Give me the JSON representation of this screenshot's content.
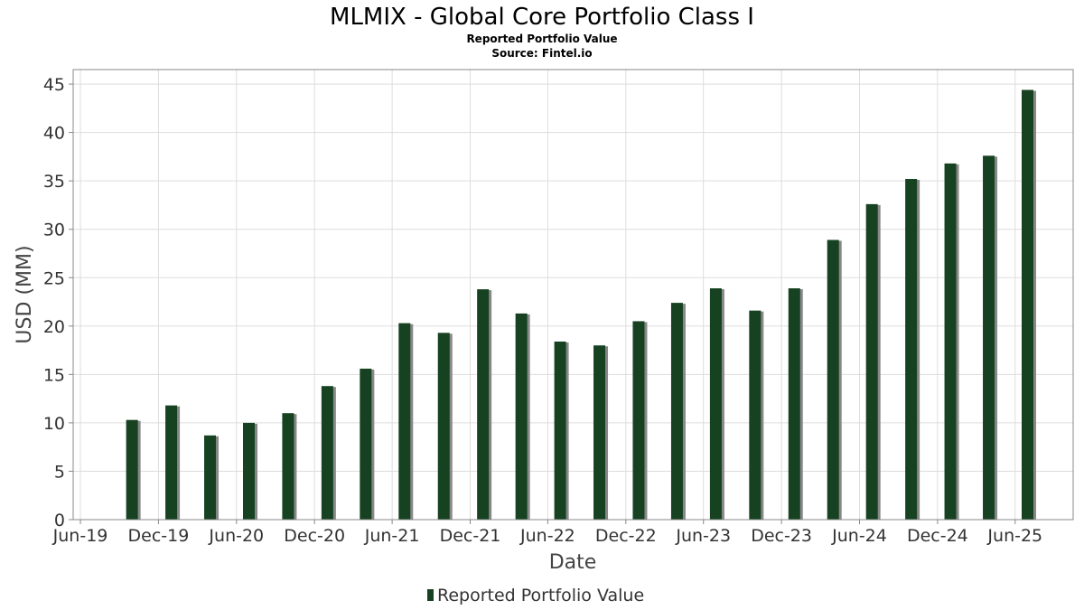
{
  "chart_data": {
    "type": "bar",
    "title": "MLMIX - Global Core Portfolio Class I",
    "subtitle_lines": [
      "Reported Portfolio Value",
      "Source: Fintel.io"
    ],
    "xlabel": "Date",
    "ylabel": "USD (MM)",
    "ylim": [
      0,
      46.5
    ],
    "yticks": [
      "0",
      "5",
      "10",
      "15",
      "20",
      "25",
      "30",
      "35",
      "40",
      "45"
    ],
    "xlim": [
      "2019-05-15",
      "2025-10-15"
    ],
    "xticks": [
      {
        "date": "2019-06-01",
        "label": "Jun-19"
      },
      {
        "date": "2019-12-01",
        "label": "Dec-19"
      },
      {
        "date": "2020-06-01",
        "label": "Jun-20"
      },
      {
        "date": "2020-12-01",
        "label": "Dec-20"
      },
      {
        "date": "2021-06-01",
        "label": "Jun-21"
      },
      {
        "date": "2021-12-01",
        "label": "Dec-21"
      },
      {
        "date": "2022-06-01",
        "label": "Jun-22"
      },
      {
        "date": "2022-12-01",
        "label": "Dec-22"
      },
      {
        "date": "2023-06-01",
        "label": "Jun-23"
      },
      {
        "date": "2023-12-01",
        "label": "Dec-23"
      },
      {
        "date": "2024-06-01",
        "label": "Jun-24"
      },
      {
        "date": "2024-12-01",
        "label": "Dec-24"
      },
      {
        "date": "2025-06-01",
        "label": "Jun-25"
      }
    ],
    "grid": true,
    "legend_position": "bottom-center",
    "series": [
      {
        "name": "Reported Portfolio Value",
        "color": "#164221",
        "shadow_color": "#888888",
        "points": [
          {
            "x": "2019-09-30",
            "y": 10.3
          },
          {
            "x": "2019-12-31",
            "y": 11.8
          },
          {
            "x": "2020-03-31",
            "y": 8.7
          },
          {
            "x": "2020-06-30",
            "y": 10.0
          },
          {
            "x": "2020-09-30",
            "y": 11.0
          },
          {
            "x": "2020-12-31",
            "y": 13.8
          },
          {
            "x": "2021-03-31",
            "y": 15.6
          },
          {
            "x": "2021-06-30",
            "y": 20.3
          },
          {
            "x": "2021-09-30",
            "y": 19.3
          },
          {
            "x": "2021-12-31",
            "y": 23.8
          },
          {
            "x": "2022-03-31",
            "y": 21.3
          },
          {
            "x": "2022-06-30",
            "y": 18.4
          },
          {
            "x": "2022-09-30",
            "y": 18.0
          },
          {
            "x": "2022-12-31",
            "y": 20.5
          },
          {
            "x": "2023-03-31",
            "y": 22.4
          },
          {
            "x": "2023-06-30",
            "y": 23.9
          },
          {
            "x": "2023-09-30",
            "y": 21.6
          },
          {
            "x": "2023-12-31",
            "y": 23.9
          },
          {
            "x": "2024-03-31",
            "y": 28.9
          },
          {
            "x": "2024-06-30",
            "y": 32.6
          },
          {
            "x": "2024-09-30",
            "y": 35.2
          },
          {
            "x": "2024-12-31",
            "y": 36.8
          },
          {
            "x": "2025-03-31",
            "y": 37.6
          },
          {
            "x": "2025-06-30",
            "y": 44.4
          }
        ]
      }
    ]
  }
}
